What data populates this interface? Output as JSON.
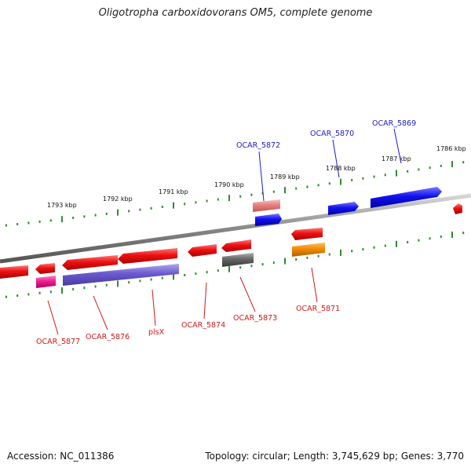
{
  "title": "Oligotropha carboxidovorans OM5, complete genome",
  "footer": {
    "accession": "Accession: NC_011386",
    "topology": "Topology: circular; Length: 3,745,629 bp; Genes: 3,770"
  },
  "scale_labels": [
    "1793 kbp",
    "1792 kbp",
    "1791 kbp",
    "1790 kbp",
    "1789 kbp",
    "1788 kbp",
    "1787 kbp",
    "1786 kbp"
  ],
  "forward_gene_labels": [
    "OCAR_5872",
    "OCAR_5870",
    "OCAR_5869"
  ],
  "reverse_gene_labels": [
    "OCAR_5877",
    "OCAR_5876",
    "plsX",
    "OCAR_5874",
    "OCAR_5873",
    "OCAR_5871"
  ],
  "colors": {
    "backbone": "#888888",
    "tick": "#2e8b2e",
    "forward_label": "#1a1acc",
    "reverse_label": "#cc1a1a",
    "red_gene": "#ee1111",
    "blue_gene": "#1111ee",
    "salmon_gene": "#e88080",
    "magenta_gene": "#ee2090",
    "purple_gene": "#6a5acd",
    "gray_gene": "#666666",
    "orange_gene": "#f08c00"
  }
}
